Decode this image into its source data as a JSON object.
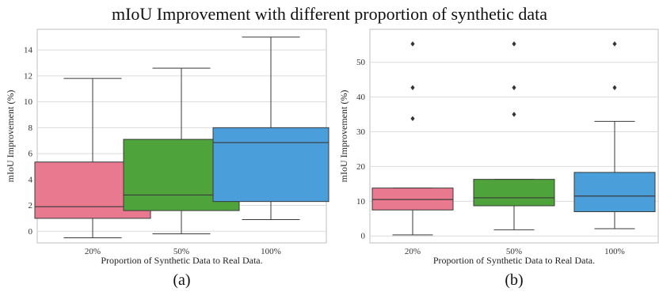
{
  "figure": {
    "title": "mIoU Improvement with different proportion of synthetic data"
  },
  "chart_data": [
    {
      "type": "box",
      "panel_label": "(a)",
      "xlabel": "Proportion of Synthetic Data to Real Data.",
      "ylabel": "mIoU Improvement (%)",
      "categories": [
        "20%",
        "50%",
        "100%"
      ],
      "colors": [
        "#e8798e",
        "#4fa33b",
        "#4a9ed9"
      ],
      "ylim": [
        -0.9,
        15.6
      ],
      "yticks": [
        0,
        2,
        4,
        6,
        8,
        10,
        12,
        14
      ],
      "grid": true,
      "boxes": [
        {
          "whisker_low": -0.5,
          "q1": 1.0,
          "median": 1.9,
          "q3": 5.35,
          "whisker_high": 11.8,
          "outliers": []
        },
        {
          "whisker_low": -0.2,
          "q1": 1.6,
          "median": 2.8,
          "q3": 7.1,
          "whisker_high": 12.6,
          "outliers": []
        },
        {
          "whisker_low": 0.9,
          "q1": 2.3,
          "median": 6.85,
          "q3": 8.0,
          "whisker_high": 15.0,
          "outliers": []
        }
      ]
    },
    {
      "type": "box",
      "panel_label": "(b)",
      "xlabel": "Proportion of Synthetic Data to Real Data.",
      "ylabel": "mIoU Improvement (%)",
      "categories": [
        "20%",
        "50%",
        "100%"
      ],
      "colors": [
        "#e8798e",
        "#4fa33b",
        "#4a9ed9"
      ],
      "ylim": [
        -2,
        59.5
      ],
      "yticks": [
        0,
        10,
        20,
        30,
        40,
        50
      ],
      "grid": true,
      "boxes": [
        {
          "whisker_low": 0.3,
          "q1": 7.5,
          "median": 10.5,
          "q3": 13.8,
          "whisker_high": 13.8,
          "outliers": [
            33.8,
            42.7,
            55.3
          ]
        },
        {
          "whisker_low": 1.8,
          "q1": 8.7,
          "median": 11.0,
          "q3": 16.3,
          "whisker_high": 16.3,
          "outliers": [
            35.0,
            42.7,
            55.3
          ]
        },
        {
          "whisker_low": 2.1,
          "q1": 7.0,
          "median": 11.5,
          "q3": 18.3,
          "whisker_high": 33.0,
          "outliers": [
            42.7,
            55.3
          ]
        }
      ]
    }
  ]
}
